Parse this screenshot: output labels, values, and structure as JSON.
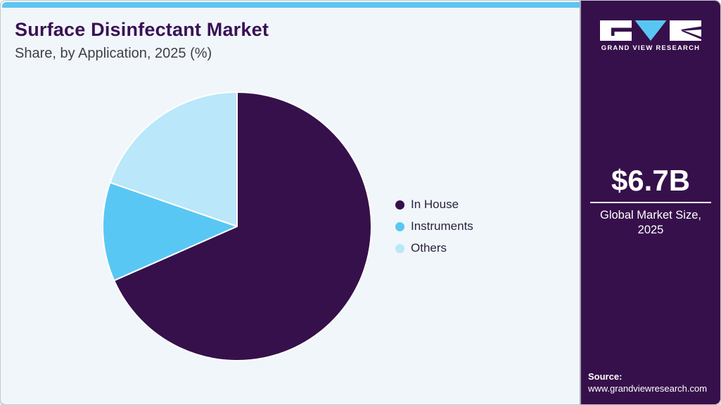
{
  "header": {
    "title": "Surface Disinfectant Market",
    "subtitle": "Share, by Application, 2025 (%)"
  },
  "chart_data": {
    "type": "pie",
    "title": "Surface Disinfectant Market Share, by Application, 2025 (%)",
    "categories": [
      "In House",
      "Instruments",
      "Others"
    ],
    "values": [
      68.4,
      11.9,
      19.7
    ],
    "unit": "%",
    "colors": [
      "#36104B",
      "#59C7F4",
      "#BAE7F9"
    ],
    "start_angle": "top",
    "direction": "clockwise",
    "legend_position": "right",
    "data_labels_shown": false
  },
  "sidebar": {
    "brand": "GRAND VIEW RESEARCH",
    "logo_icon": "gvr-logo",
    "market_size": {
      "value": "$6.7B",
      "label_line1": "Global Market Size,",
      "label_line2": "2025"
    },
    "source": {
      "label": "Source:",
      "url": "www.grandviewresearch.com"
    }
  },
  "theme": {
    "topbar_blue": "#5EC4EF",
    "brand_purple": "#36104B",
    "panel_bg": "#F1F6FA",
    "title_color": "#3A1155",
    "logo_triangle_blue": "#59C6F2"
  }
}
